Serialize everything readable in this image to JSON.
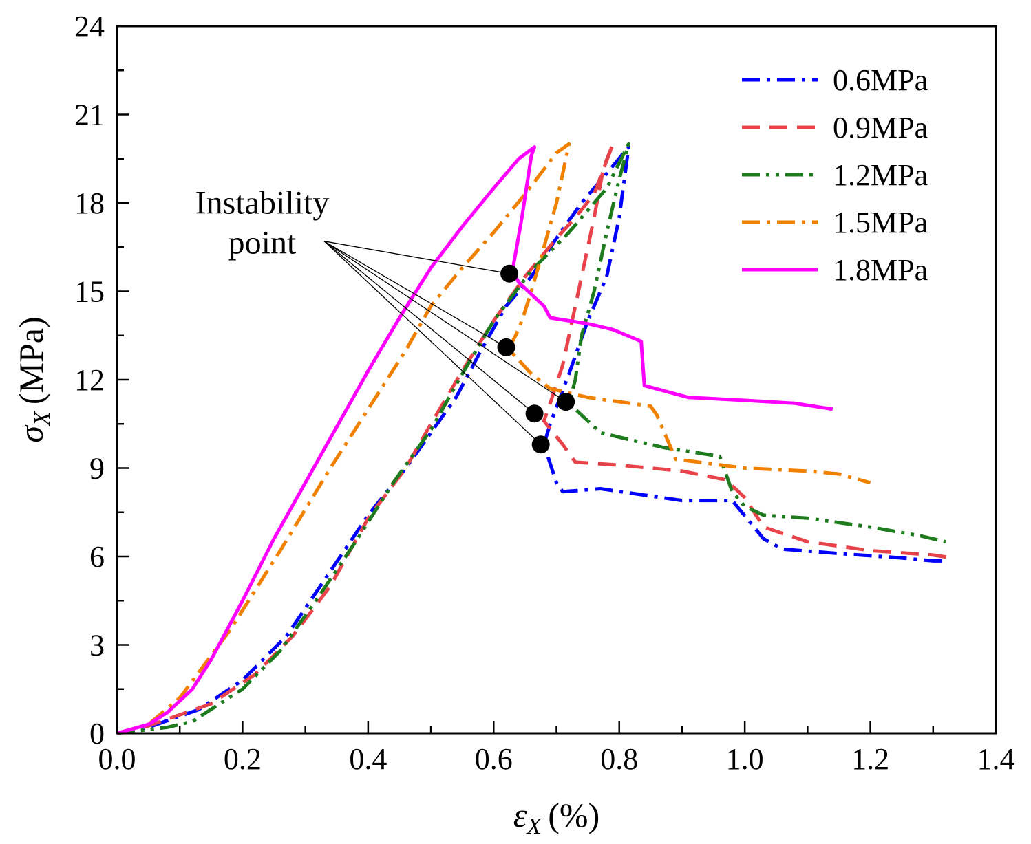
{
  "chart_data": {
    "type": "line",
    "title": "",
    "xlabel": {
      "symbol": "ε",
      "subscript": "X",
      "unit": "(%)"
    },
    "ylabel": {
      "symbol": "σ",
      "subscript": "X",
      "unit": "(MPa)"
    },
    "xlim": [
      0.0,
      1.4
    ],
    "ylim": [
      0,
      24
    ],
    "x_major_ticks": [
      0.0,
      0.2,
      0.4,
      0.6,
      0.8,
      1.0,
      1.2,
      1.4
    ],
    "x_tick_labels": [
      "0.0",
      "0.2",
      "0.4",
      "0.6",
      "0.8",
      "1.0",
      "1.2",
      "1.4"
    ],
    "y_major_ticks": [
      0,
      3,
      6,
      9,
      12,
      15,
      18,
      21,
      24
    ],
    "y_tick_labels": [
      "0",
      "3",
      "6",
      "9",
      "12",
      "15",
      "18",
      "21",
      "24"
    ],
    "grid": false,
    "legend_position": "top-right",
    "series": [
      {
        "name": "0.6MPa",
        "color": "#0000ff",
        "dash": "dashdot",
        "points": [
          [
            0.0,
            0.0
          ],
          [
            0.05,
            0.2
          ],
          [
            0.13,
            0.8
          ],
          [
            0.2,
            1.8
          ],
          [
            0.27,
            3.3
          ],
          [
            0.34,
            5.5
          ],
          [
            0.4,
            7.4
          ],
          [
            0.46,
            9.0
          ],
          [
            0.5,
            10.2
          ],
          [
            0.54,
            11.4
          ],
          [
            0.58,
            13.0
          ],
          [
            0.62,
            14.5
          ],
          [
            0.66,
            15.5
          ],
          [
            0.7,
            16.8
          ],
          [
            0.74,
            18.0
          ],
          [
            0.78,
            19.0
          ],
          [
            0.815,
            19.9
          ],
          [
            0.8,
            17.5
          ],
          [
            0.78,
            15.5
          ],
          [
            0.75,
            14.0
          ],
          [
            0.72,
            12.2
          ],
          [
            0.69,
            10.5
          ],
          [
            0.68,
            9.8
          ],
          [
            0.7,
            8.5
          ],
          [
            0.71,
            8.2
          ],
          [
            0.77,
            8.3
          ],
          [
            0.9,
            7.9
          ],
          [
            0.98,
            7.9
          ],
          [
            1.03,
            6.6
          ],
          [
            1.06,
            6.25
          ],
          [
            1.15,
            6.1
          ],
          [
            1.25,
            5.95
          ],
          [
            1.3,
            5.85
          ],
          [
            1.32,
            5.85
          ]
        ]
      },
      {
        "name": "0.9MPa",
        "color": "#e8434a",
        "dash": "dashed",
        "points": [
          [
            0.0,
            0.0
          ],
          [
            0.05,
            0.25
          ],
          [
            0.15,
            1.0
          ],
          [
            0.22,
            2.0
          ],
          [
            0.28,
            3.3
          ],
          [
            0.34,
            5.0
          ],
          [
            0.4,
            7.3
          ],
          [
            0.46,
            9.0
          ],
          [
            0.5,
            10.5
          ],
          [
            0.55,
            12.3
          ],
          [
            0.6,
            14.0
          ],
          [
            0.65,
            15.5
          ],
          [
            0.7,
            16.8
          ],
          [
            0.73,
            17.5
          ],
          [
            0.76,
            18.3
          ],
          [
            0.79,
            20.0
          ],
          [
            0.775,
            19.2
          ],
          [
            0.76,
            17.5
          ],
          [
            0.73,
            14.5
          ],
          [
            0.71,
            12.5
          ],
          [
            0.69,
            11.2
          ],
          [
            0.68,
            10.6
          ],
          [
            0.71,
            9.8
          ],
          [
            0.73,
            9.2
          ],
          [
            0.8,
            9.1
          ],
          [
            0.9,
            8.9
          ],
          [
            0.97,
            8.6
          ],
          [
            1.0,
            8.0
          ],
          [
            1.03,
            7.0
          ],
          [
            1.1,
            6.5
          ],
          [
            1.2,
            6.2
          ],
          [
            1.3,
            6.05
          ],
          [
            1.33,
            5.95
          ]
        ]
      },
      {
        "name": "1.2MPa",
        "color": "#1e7b1e",
        "dash": "dashdotdot",
        "points": [
          [
            0.0,
            0.0
          ],
          [
            0.08,
            0.2
          ],
          [
            0.12,
            0.4
          ],
          [
            0.2,
            1.5
          ],
          [
            0.26,
            2.8
          ],
          [
            0.32,
            4.6
          ],
          [
            0.38,
            6.5
          ],
          [
            0.44,
            8.5
          ],
          [
            0.5,
            10.3
          ],
          [
            0.55,
            12.2
          ],
          [
            0.6,
            14.0
          ],
          [
            0.66,
            15.7
          ],
          [
            0.72,
            17.0
          ],
          [
            0.78,
            18.5
          ],
          [
            0.815,
            20.0
          ],
          [
            0.8,
            18.8
          ],
          [
            0.78,
            17.0
          ],
          [
            0.76,
            15.0
          ],
          [
            0.74,
            13.5
          ],
          [
            0.73,
            12.0
          ],
          [
            0.72,
            11.2
          ],
          [
            0.74,
            10.8
          ],
          [
            0.77,
            10.2
          ],
          [
            0.87,
            9.7
          ],
          [
            0.93,
            9.5
          ],
          [
            0.96,
            9.4
          ],
          [
            0.98,
            8.2
          ],
          [
            1.0,
            7.7
          ],
          [
            1.03,
            7.4
          ],
          [
            1.1,
            7.3
          ],
          [
            1.2,
            7.0
          ],
          [
            1.28,
            6.7
          ],
          [
            1.32,
            6.5
          ]
        ]
      },
      {
        "name": "1.5MPa",
        "color": "#f08000",
        "dash": "dashdot",
        "points": [
          [
            0.0,
            0.0
          ],
          [
            0.05,
            0.3
          ],
          [
            0.1,
            1.2
          ],
          [
            0.18,
            3.5
          ],
          [
            0.26,
            6.2
          ],
          [
            0.34,
            9.0
          ],
          [
            0.4,
            11.0
          ],
          [
            0.46,
            13.0
          ],
          [
            0.5,
            14.5
          ],
          [
            0.55,
            15.8
          ],
          [
            0.6,
            17.0
          ],
          [
            0.65,
            18.3
          ],
          [
            0.7,
            19.7
          ],
          [
            0.72,
            20.0
          ],
          [
            0.715,
            19.5
          ],
          [
            0.7,
            18.0
          ],
          [
            0.68,
            16.5
          ],
          [
            0.66,
            15.0
          ],
          [
            0.645,
            14.0
          ],
          [
            0.635,
            13.5
          ],
          [
            0.625,
            13.1
          ],
          [
            0.63,
            12.9
          ],
          [
            0.66,
            12.2
          ],
          [
            0.69,
            11.7
          ],
          [
            0.75,
            11.4
          ],
          [
            0.85,
            11.1
          ],
          [
            0.86,
            10.8
          ],
          [
            0.89,
            9.3
          ],
          [
            1.0,
            9.0
          ],
          [
            1.1,
            8.9
          ],
          [
            1.15,
            8.8
          ],
          [
            1.2,
            8.5
          ]
        ]
      },
      {
        "name": "1.8MPa",
        "color": "#ff00ff",
        "dash": "solid",
        "points": [
          [
            0.0,
            0.0
          ],
          [
            0.05,
            0.3
          ],
          [
            0.08,
            0.7
          ],
          [
            0.12,
            1.5
          ],
          [
            0.15,
            2.5
          ],
          [
            0.2,
            4.5
          ],
          [
            0.25,
            6.6
          ],
          [
            0.3,
            8.5
          ],
          [
            0.35,
            10.4
          ],
          [
            0.4,
            12.3
          ],
          [
            0.45,
            14.1
          ],
          [
            0.5,
            15.8
          ],
          [
            0.55,
            17.2
          ],
          [
            0.6,
            18.5
          ],
          [
            0.64,
            19.5
          ],
          [
            0.665,
            19.9
          ],
          [
            0.66,
            19.6
          ],
          [
            0.645,
            17.5
          ],
          [
            0.63,
            15.7
          ],
          [
            0.64,
            15.3
          ],
          [
            0.68,
            14.5
          ],
          [
            0.69,
            14.1
          ],
          [
            0.75,
            13.9
          ],
          [
            0.79,
            13.7
          ],
          [
            0.835,
            13.3
          ],
          [
            0.84,
            11.8
          ],
          [
            0.91,
            11.4
          ],
          [
            1.0,
            11.3
          ],
          [
            1.08,
            11.2
          ],
          [
            1.14,
            11.0
          ]
        ]
      }
    ],
    "markers": [
      {
        "series": "1.8MPa",
        "x": 0.625,
        "y": 15.6
      },
      {
        "series": "1.5MPa",
        "x": 0.62,
        "y": 13.1
      },
      {
        "series": "1.2MPa",
        "x": 0.715,
        "y": 11.25
      },
      {
        "series": "0.9MPa",
        "x": 0.665,
        "y": 10.85
      },
      {
        "series": "0.6MPa",
        "x": 0.675,
        "y": 9.8
      }
    ],
    "annotations": [
      {
        "lines": [
          "Instability",
          "point"
        ],
        "leader_origin": [
          0.33,
          16.7
        ],
        "targets": "markers"
      }
    ]
  }
}
